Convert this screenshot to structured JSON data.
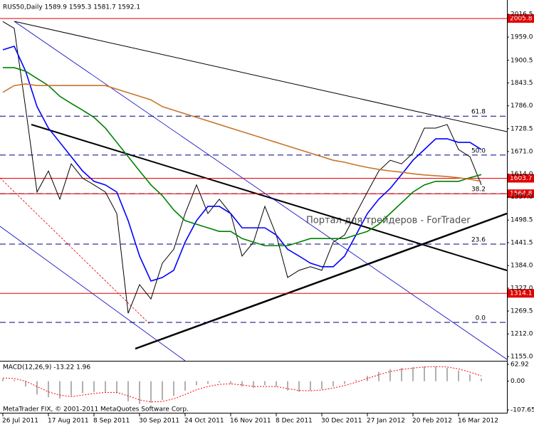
{
  "chart_data": [
    {
      "type": "line",
      "title": "RUS50,Daily  1589.9 1595.3 1581.7 1592.1",
      "watermark": "Портал для трейдеров - ForTrader",
      "footer": "MetaTrader FIX, © 2001-2011 MetaQuotes Software Corp.",
      "categories": [
        "26 Jul 2011",
        null,
        null,
        null,
        "17 Aug 2011",
        null,
        null,
        null,
        "8 Sep 2011",
        null,
        null,
        null,
        "30 Sep 2011",
        null,
        null,
        null,
        "24 Oct 2011",
        null,
        null,
        null,
        "16 Nov 2011",
        null,
        null,
        null,
        "8 Dec 2011",
        null,
        null,
        null,
        "30 Dec 2011",
        null,
        null,
        null,
        "27 Jan 2012",
        null,
        null,
        null,
        "20 Feb 2012",
        null,
        null,
        null,
        "16 Mar 2012",
        null,
        null
      ],
      "series": [
        {
          "color": "#000000",
          "values": [
            1998,
            1981,
            1780,
            1569,
            1622,
            1551,
            1640,
            1604,
            1587,
            1569,
            1515,
            1264,
            1336,
            1300,
            1390,
            1425,
            1515,
            1587,
            1515,
            1551,
            1515,
            1408,
            1443,
            1533,
            1461,
            1354,
            1372,
            1381,
            1372,
            1443,
            1461,
            1515,
            1569,
            1622,
            1649,
            1640,
            1667,
            1730,
            1730,
            1739,
            1676,
            1658,
            1587
          ]
        },
        {
          "color": "#0000ff",
          "values": [
            1927,
            1936,
            1873,
            1784,
            1730,
            1694,
            1658,
            1622,
            1596,
            1587,
            1569,
            1497,
            1408,
            1345,
            1354,
            1372,
            1443,
            1497,
            1533,
            1533,
            1515,
            1479,
            1479,
            1479,
            1461,
            1425,
            1408,
            1390,
            1381,
            1381,
            1408,
            1461,
            1515,
            1551,
            1578,
            1613,
            1649,
            1676,
            1703,
            1703,
            1694,
            1694,
            1676
          ]
        },
        {
          "color": "#008000",
          "values": [
            1882,
            1882,
            1873,
            1855,
            1837,
            1810,
            1792,
            1775,
            1757,
            1730,
            1694,
            1658,
            1622,
            1587,
            1560,
            1524,
            1497,
            1488,
            1479,
            1470,
            1470,
            1452,
            1443,
            1434,
            1434,
            1434,
            1443,
            1452,
            1452,
            1452,
            1452,
            1461,
            1470,
            1488,
            1515,
            1542,
            1569,
            1587,
            1596,
            1596,
            1596,
            1605,
            1613
          ]
        },
        {
          "color": "#c8742c",
          "values": [
            1820,
            1837,
            1841,
            1837,
            1837,
            1837,
            1837,
            1837,
            1837,
            1837,
            1828,
            1819,
            1810,
            1801,
            1784,
            1775,
            1766,
            1757,
            1748,
            1739,
            1730,
            1721,
            1712,
            1703,
            1694,
            1685,
            1676,
            1667,
            1658,
            1649,
            1644,
            1637,
            1631,
            1626,
            1622,
            1619,
            1615,
            1612,
            1610,
            1608,
            1605,
            1601,
            1596
          ]
        }
      ],
      "levels": [
        2005.8,
        1603.7,
        1564.8,
        1314.1
      ],
      "level_color": "#e00000",
      "fib_ratios": [
        "61.8",
        "50.0",
        "38.2",
        "23.6",
        "0.0"
      ],
      "fib_prices": [
        1760,
        1662,
        1565,
        1438,
        1241
      ],
      "fib_color": "#000080",
      "ylim": [
        1144.3,
        2052.3
      ],
      "yticks": [
        2016.5,
        {
          "value": 1959,
          "label": "1959.0"
        },
        1900.5,
        1843.5,
        {
          "value": 1786,
          "label": "1786.0"
        },
        1728.5,
        {
          "value": 1671,
          "label": "1671.0"
        },
        {
          "value": 1614,
          "label": "1614.0"
        },
        {
          "value": 1557,
          "label": "1557.0"
        },
        1498.5,
        1441.5,
        {
          "value": 1384,
          "label": "1384.0"
        },
        {
          "value": 1327,
          "label": "1327.0"
        },
        1269.5,
        {
          "value": 1212,
          "label": "1212.0"
        },
        {
          "value": 1155,
          "label": "1155.0"
        }
      ]
    },
    {
      "type": "bar",
      "title": "MACD(12,26,9) -13.22 1.96",
      "values": [
        10,
        5,
        -20,
        -50,
        -60,
        -65,
        -55,
        -45,
        -40,
        -40,
        -45,
        -75,
        -85,
        -80,
        -70,
        -55,
        -35,
        -15,
        -10,
        -5,
        -10,
        -20,
        -25,
        -15,
        -20,
        -35,
        -40,
        -35,
        -30,
        -20,
        -10,
        5,
        20,
        35,
        45,
        50,
        52,
        55,
        55,
        50,
        40,
        25,
        10
      ],
      "color": "#b0b0b0",
      "signal": {
        "color": "#ff0000",
        "values": [
          12,
          10,
          0,
          -20,
          -40,
          -52,
          -58,
          -52,
          -46,
          -42,
          -42,
          -55,
          -70,
          -78,
          -76,
          -66,
          -50,
          -32,
          -20,
          -12,
          -10,
          -14,
          -20,
          -20,
          -20,
          -28,
          -35,
          -36,
          -33,
          -26,
          -16,
          -4,
          10,
          24,
          36,
          44,
          49,
          53,
          55,
          53,
          46,
          34,
          20
        ]
      },
      "ylim": [
        -118.3,
        73.6
      ],
      "yticks": [
        62.92,
        {
          "value": 0,
          "label": "0.00"
        },
        -107.65
      ]
    }
  ]
}
